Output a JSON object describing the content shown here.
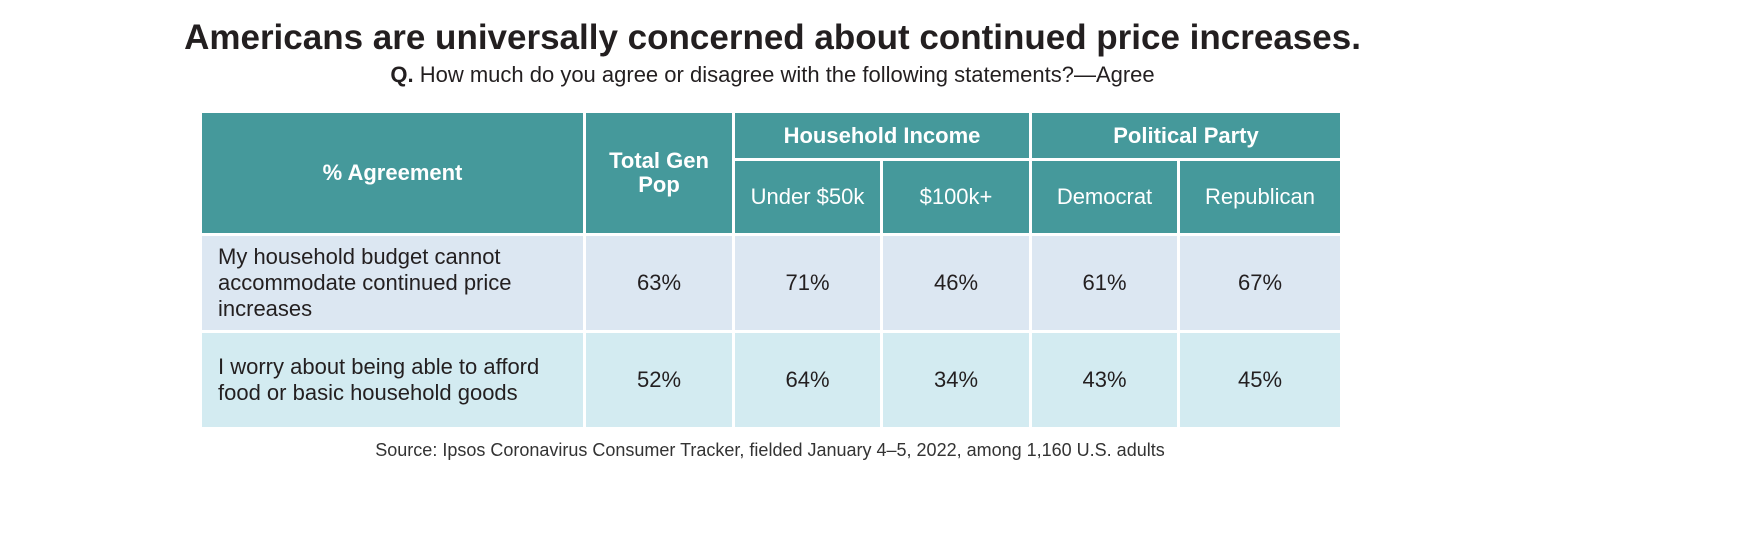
{
  "title": "Americans are universally concerned about continued price increases.",
  "subtitle": {
    "q": "Q.",
    "text": "How much do you agree or disagree with the following statements?—Agree"
  },
  "chart_data": {
    "type": "table",
    "header": {
      "agreement": "% Agreement",
      "total": "Total Gen Pop",
      "income_group": "Household Income",
      "party_group": "Political Party",
      "columns": [
        "Under $50k",
        "$100k+",
        "Democrat",
        "Republican"
      ]
    },
    "rows": [
      {
        "label": "My household budget cannot accommodate continued price increases",
        "values": [
          "63%",
          "71%",
          "46%",
          "61%",
          "67%"
        ]
      },
      {
        "label": "I worry about being able to afford food or basic household goods",
        "values": [
          "52%",
          "64%",
          "34%",
          "43%",
          "45%"
        ]
      }
    ]
  },
  "source": "Source: Ipsos Coronavirus Consumer Tracker, fielded January 4–5, 2022, among 1,160 U.S. adults",
  "colors": {
    "header": "#45999b",
    "row1": "#dce7f2",
    "row2": "#d3ebf1"
  }
}
